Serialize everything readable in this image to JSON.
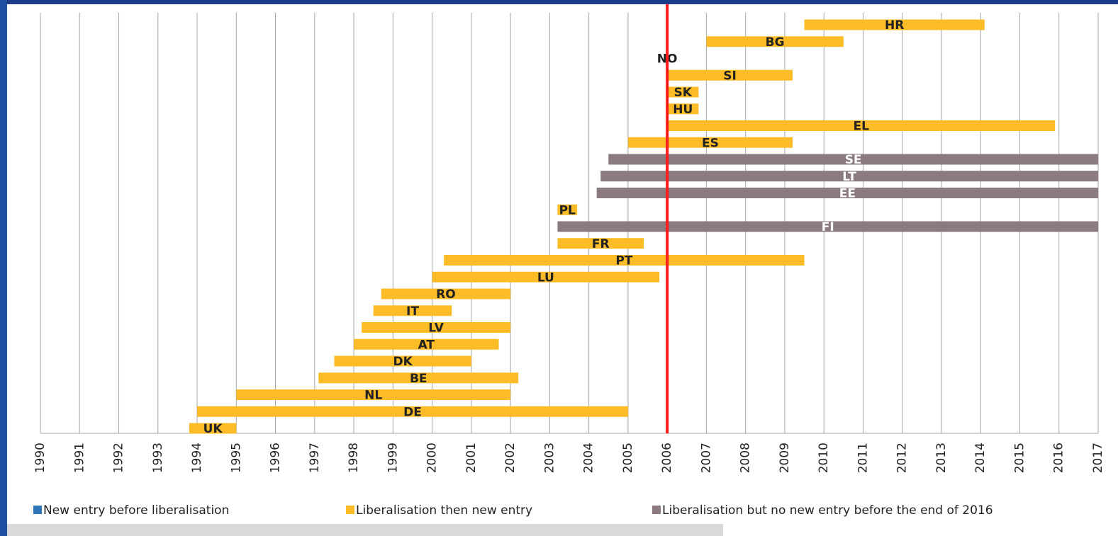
{
  "chart_data": {
    "type": "gantt",
    "categories": [
      "HR",
      "BG",
      "NO",
      "SI",
      "SK",
      "HU",
      "EL",
      "ES",
      "SE",
      "LT",
      "EE",
      "PL",
      "FI",
      "FR",
      "PT",
      "LU",
      "RO",
      "IT",
      "LV",
      "AT",
      "DK",
      "BE",
      "NL",
      "DE",
      "UK"
    ],
    "series": [
      {
        "name": "New entry before liberalisation",
        "color": "#2e75b6",
        "start": [
          null,
          null,
          null,
          null,
          null,
          null,
          null,
          null,
          null,
          null,
          null,
          null,
          null,
          null,
          null,
          null,
          null,
          null,
          null,
          null,
          null,
          null,
          null,
          null,
          null
        ],
        "end": [
          null,
          null,
          null,
          null,
          null,
          null,
          null,
          null,
          null,
          null,
          null,
          null,
          null,
          null,
          null,
          null,
          null,
          null,
          null,
          null,
          null,
          null,
          null,
          null,
          null
        ]
      },
      {
        "name": "Liberalisation then new entry",
        "color": "#fbbc27",
        "label_color": "#222222",
        "start": [
          2009.5,
          2007.0,
          2006.0,
          2006.0,
          2006.0,
          2006.0,
          2006.0,
          2005.0,
          null,
          null,
          null,
          2003.2,
          null,
          2003.2,
          2000.3,
          2000.0,
          1998.7,
          1998.5,
          1998.2,
          1998.0,
          1997.5,
          1997.1,
          1995.0,
          1994.0,
          1993.8
        ],
        "end": [
          2014.1,
          2010.5,
          2006.0,
          2009.2,
          2006.8,
          2006.8,
          2015.9,
          2009.2,
          null,
          null,
          null,
          2003.7,
          null,
          2005.4,
          2009.5,
          2005.8,
          2002.0,
          2000.5,
          2002.0,
          2001.7,
          2001.0,
          2002.2,
          2002.0,
          2005.0,
          1995.0
        ]
      },
      {
        "name": "Liberalisation but no new entry before the end of 2016",
        "color": "#8b7b7e",
        "label_color": "#ffffff",
        "start": [
          null,
          null,
          null,
          null,
          null,
          null,
          null,
          null,
          2004.5,
          2004.3,
          2004.2,
          null,
          2003.2,
          null,
          null,
          null,
          null,
          null,
          null,
          null,
          null,
          null,
          null,
          null,
          null
        ],
        "end": [
          null,
          null,
          null,
          null,
          null,
          null,
          null,
          null,
          2017.0,
          2017.0,
          2017.0,
          null,
          2017.0,
          null,
          null,
          null,
          null,
          null,
          null,
          null,
          null,
          null,
          null,
          null,
          null
        ]
      }
    ],
    "xlim": [
      1990,
      2017
    ],
    "xticks": [
      1990,
      1991,
      1992,
      1993,
      1994,
      1995,
      1996,
      1997,
      1998,
      1999,
      2000,
      2001,
      2002,
      2003,
      2004,
      2005,
      2006,
      2007,
      2008,
      2009,
      2010,
      2011,
      2012,
      2013,
      2014,
      2015,
      2016,
      2017
    ],
    "grid": true,
    "reference_line": {
      "value": 2006,
      "color": "#ff1a1a"
    },
    "legend": "bottom"
  }
}
